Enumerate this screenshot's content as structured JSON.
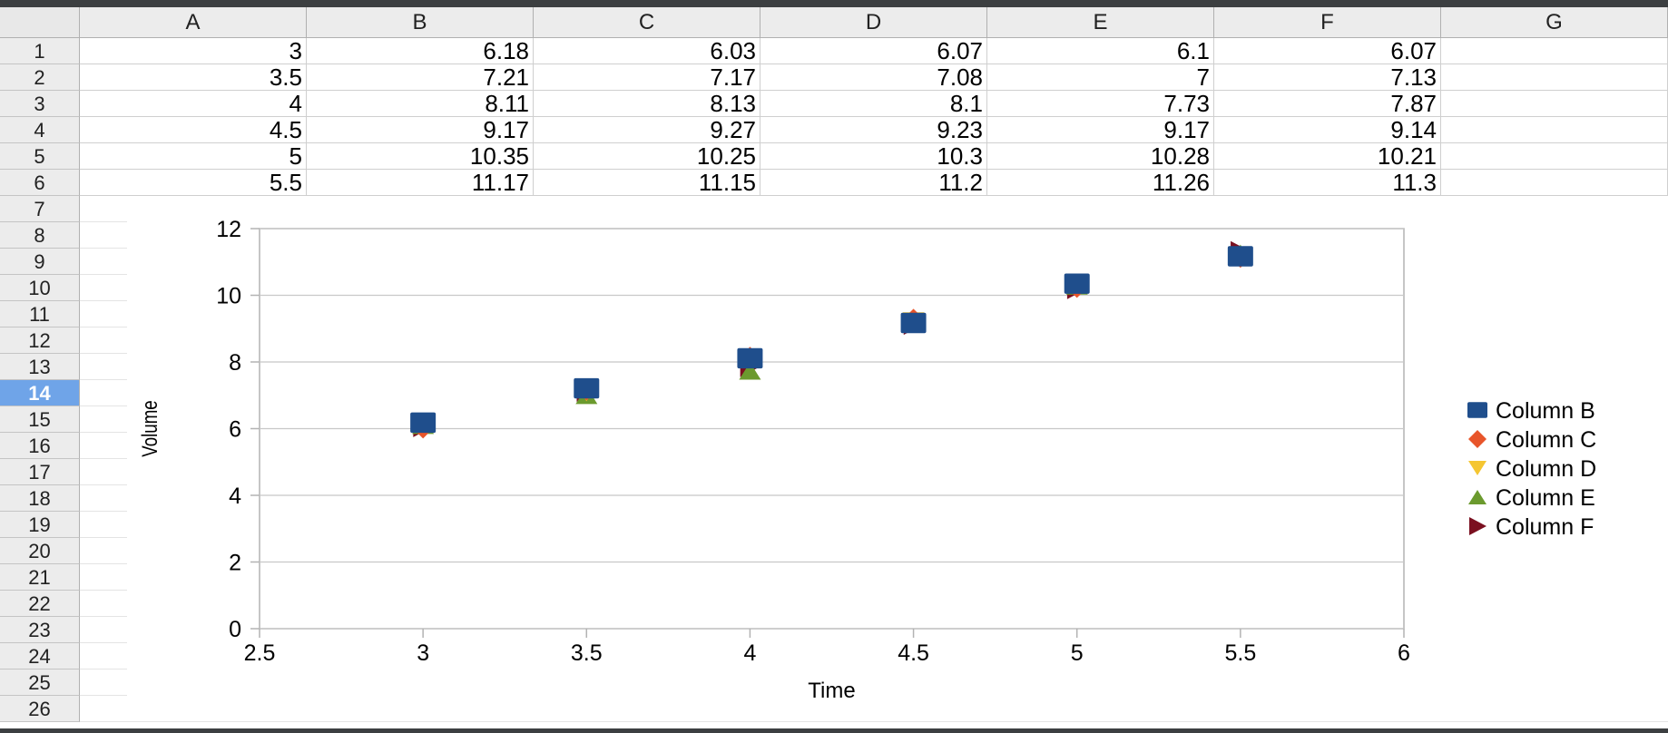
{
  "columns": [
    "A",
    "B",
    "C",
    "D",
    "E",
    "F",
    "G"
  ],
  "rows": [
    "1",
    "2",
    "3",
    "4",
    "5",
    "6",
    "7",
    "8",
    "9",
    "10",
    "11",
    "12",
    "13",
    "14",
    "15",
    "16",
    "17",
    "18",
    "19",
    "20",
    "21",
    "22",
    "23",
    "24",
    "25",
    "26"
  ],
  "active_row": "14",
  "cells": [
    [
      "3",
      "6.18",
      "6.03",
      "6.07",
      "6.1",
      "6.07"
    ],
    [
      "3.5",
      "7.21",
      "7.17",
      "7.08",
      "7",
      "7.13"
    ],
    [
      "4",
      "8.11",
      "8.13",
      "8.1",
      "7.73",
      "7.87"
    ],
    [
      "4.5",
      "9.17",
      "9.27",
      "9.23",
      "9.17",
      "9.14"
    ],
    [
      "5",
      "10.35",
      "10.25",
      "10.3",
      "10.28",
      "10.21"
    ],
    [
      "5.5",
      "11.17",
      "11.15",
      "11.2",
      "11.26",
      "11.3"
    ]
  ],
  "chart_data": {
    "type": "scatter",
    "title": "",
    "xlabel": "Time",
    "ylabel": "Volume",
    "xlim": [
      2.5,
      6
    ],
    "ylim": [
      0,
      12
    ],
    "xticks": [
      "2.5",
      "3",
      "3.5",
      "4",
      "4.5",
      "5",
      "5.5",
      "6"
    ],
    "yticks": [
      "0",
      "2",
      "4",
      "6",
      "8",
      "10",
      "12"
    ],
    "grid": "horizontal",
    "legend_position": "right",
    "x": [
      3,
      3.5,
      4,
      4.5,
      5,
      5.5
    ],
    "series": [
      {
        "name": "Column B",
        "values": [
          6.18,
          7.21,
          8.11,
          9.17,
          10.35,
          11.17
        ],
        "color": "#1f4e8c",
        "marker": "square"
      },
      {
        "name": "Column C",
        "values": [
          6.03,
          7.17,
          8.13,
          9.27,
          10.25,
          11.15
        ],
        "color": "#e8552a",
        "marker": "diamond"
      },
      {
        "name": "Column D",
        "values": [
          6.07,
          7.08,
          8.1,
          9.23,
          10.3,
          11.2
        ],
        "color": "#f5c631",
        "marker": "triangle-down"
      },
      {
        "name": "Column E",
        "values": [
          6.1,
          7,
          7.73,
          9.17,
          10.28,
          11.26
        ],
        "color": "#6b9a2e",
        "marker": "triangle-up"
      },
      {
        "name": "Column F",
        "values": [
          6.07,
          7.13,
          7.87,
          9.14,
          10.21,
          11.3
        ],
        "color": "#7b1020",
        "marker": "triangle-right"
      }
    ]
  }
}
